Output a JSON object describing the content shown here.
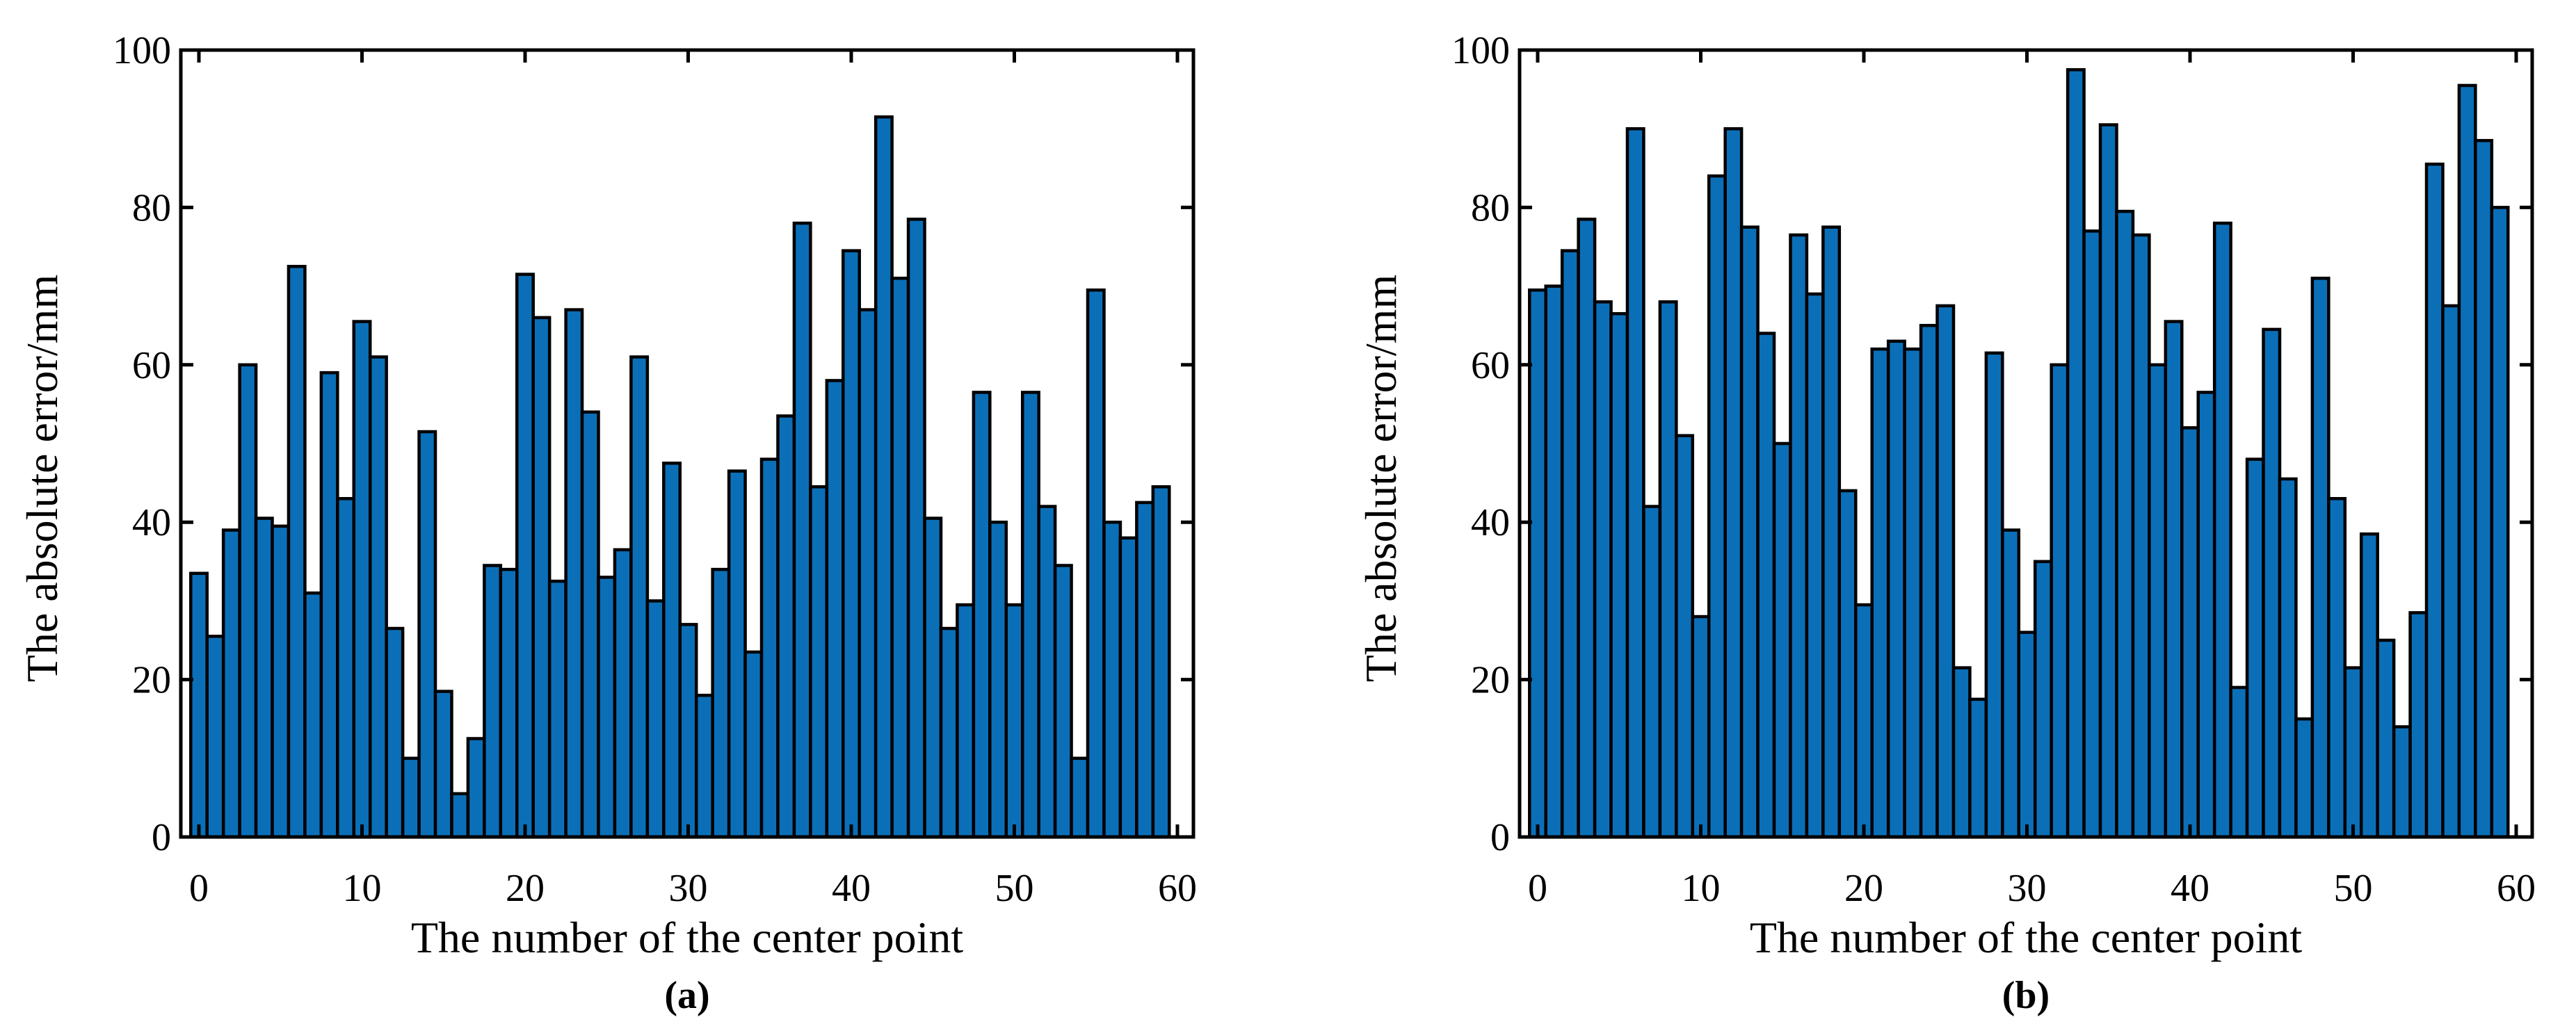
{
  "chart_data": [
    {
      "type": "bar",
      "panel_label": "(a)",
      "xlabel": "The number of the center point",
      "ylabel": "The absolute error/mm",
      "xlim": [
        0,
        60
      ],
      "ylim": [
        0,
        100
      ],
      "xticks": [
        "0",
        "10",
        "20",
        "30",
        "40",
        "50",
        "60"
      ],
      "yticks": [
        "0",
        "20",
        "40",
        "60",
        "80",
        "100"
      ],
      "x": [
        0,
        1,
        2,
        3,
        4,
        5,
        6,
        7,
        8,
        9,
        10,
        11,
        12,
        13,
        14,
        15,
        16,
        17,
        18,
        19,
        20,
        21,
        22,
        23,
        24,
        25,
        26,
        27,
        28,
        29,
        30,
        31,
        32,
        33,
        34,
        35,
        36,
        37,
        38,
        39,
        40,
        41,
        42,
        43,
        44,
        45,
        46,
        47,
        48,
        49,
        50,
        51,
        52,
        53,
        54,
        55,
        56,
        57,
        58,
        59
      ],
      "values": [
        33.5,
        25.5,
        39,
        60,
        40.5,
        39.5,
        72.5,
        31,
        59,
        43,
        65.5,
        61,
        26.5,
        10,
        51.5,
        18.5,
        5.5,
        12.5,
        34.5,
        34,
        71.5,
        66,
        32.5,
        67,
        54,
        33,
        36.5,
        61,
        30,
        47.5,
        27,
        18,
        34,
        46.5,
        23.5,
        48,
        53.5,
        78,
        44.5,
        58,
        74.5,
        67,
        91.5,
        71,
        78.5,
        40.5,
        26.5,
        29.5,
        56.5,
        40,
        29.5,
        56.5,
        42,
        34.5,
        10,
        69.5,
        40,
        38,
        42.5,
        44.5
      ],
      "bar_color": "#0b6fb8",
      "grid": false
    },
    {
      "type": "bar",
      "panel_label": "(b)",
      "xlabel": "The number of the center point",
      "ylabel": "The absolute error/mm",
      "xlim": [
        0,
        60
      ],
      "ylim": [
        0,
        100
      ],
      "xticks": [
        "0",
        "10",
        "20",
        "30",
        "40",
        "50",
        "60"
      ],
      "yticks": [
        "0",
        "20",
        "40",
        "60",
        "80",
        "100"
      ],
      "x": [
        0,
        1,
        2,
        3,
        4,
        5,
        6,
        7,
        8,
        9,
        10,
        11,
        12,
        13,
        14,
        15,
        16,
        17,
        18,
        19,
        20,
        21,
        22,
        23,
        24,
        25,
        26,
        27,
        28,
        29,
        30,
        31,
        32,
        33,
        34,
        35,
        36,
        37,
        38,
        39,
        40,
        41,
        42,
        43,
        44,
        45,
        46,
        47,
        48,
        49,
        50,
        51,
        52,
        53,
        54,
        55,
        56,
        57,
        58,
        59
      ],
      "values": [
        69.5,
        70,
        74.5,
        78.5,
        68,
        66.5,
        90,
        42,
        68,
        51,
        28,
        84,
        90,
        77.5,
        64,
        50,
        76.5,
        69,
        77.5,
        44,
        29.5,
        62,
        63,
        62,
        65,
        67.5,
        21.5,
        17.5,
        61.5,
        39,
        26,
        35,
        60,
        97.5,
        77,
        90.5,
        79.5,
        76.5,
        60,
        65.5,
        52,
        56.5,
        78,
        19,
        48,
        64.5,
        45.5,
        15,
        71,
        43,
        21.5,
        38.5,
        25,
        14,
        28.5,
        85.5,
        67.5,
        95.5,
        88.5,
        80
      ],
      "bar_color": "#0b6fb8",
      "grid": false
    }
  ]
}
